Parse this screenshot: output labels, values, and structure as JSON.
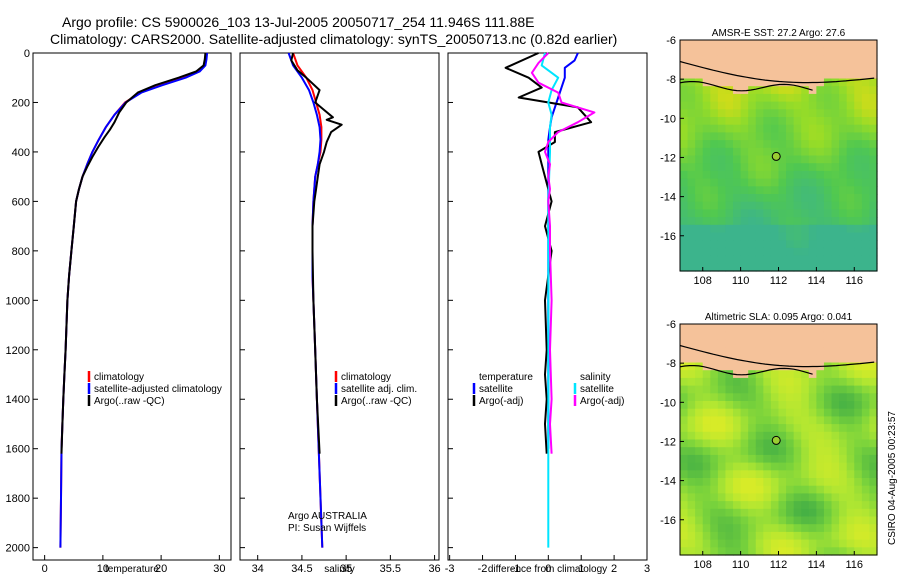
{
  "figure": {
    "title_line1": "Argo profile: CS 5900026_103 13-Jul-2005 20050717_254 11.946S 111.88E",
    "title_line2": "Climatology: CARS2000. Satellite-adjusted climatology: synTS_20050713.nc (0.82d earlier)",
    "credit_vertical": "CSIRO 04-Aug-2005 00:23:57",
    "argo_note_line1": "Argo AUSTRALIA",
    "argo_note_line2": "PI: Susan Wijffels"
  },
  "colors": {
    "climatology": "#ff0000",
    "satellite": "#0000ff",
    "argo": "#000000",
    "salinity_sat": "#00e5ff",
    "salinity_argo": "#ff00ff",
    "land": "#f5c29a"
  },
  "chart_data": [
    {
      "type": "line",
      "id": "temperature",
      "xlabel": "temperature",
      "ylabel": "",
      "xlim": [
        -2,
        32
      ],
      "ylim": [
        2050,
        0
      ],
      "xticks": [
        0,
        10,
        20,
        30
      ],
      "yticks": [
        0,
        200,
        400,
        600,
        800,
        1000,
        1200,
        1400,
        1600,
        1800,
        2000
      ],
      "legend": [
        "climatology",
        "satellite-adjusted climatology",
        "Argo(..raw -QC)"
      ],
      "series": [
        {
          "name": "climatology",
          "color": "#ff0000",
          "x": [
            27.8,
            27.7,
            27.5,
            26.5,
            24,
            20,
            16.5,
            13.8,
            12,
            10.5,
            9.3,
            8.2,
            7.3,
            6.5,
            5.9,
            5.4,
            5,
            4.6,
            4.2,
            3.9,
            3.6,
            3.4,
            3.2,
            3.05,
            2.9,
            2.8,
            2.7
          ],
          "y": [
            0,
            25,
            50,
            75,
            100,
            130,
            160,
            200,
            250,
            300,
            350,
            400,
            450,
            500,
            550,
            600,
            700,
            800,
            900,
            1000,
            1200,
            1300,
            1400,
            1500,
            1600,
            1800,
            2000
          ]
        },
        {
          "name": "satellite",
          "color": "#0000ff",
          "x": [
            27.9,
            27.8,
            27.6,
            26.6,
            24.2,
            20.2,
            16.6,
            13.9,
            12,
            10.5,
            9.3,
            8.2,
            7.3,
            6.5,
            5.9,
            5.4,
            5,
            4.6,
            4.2,
            3.9,
            3.6,
            3.4,
            3.2,
            3.05,
            2.9,
            2.8,
            2.7
          ],
          "y": [
            0,
            25,
            50,
            75,
            100,
            130,
            160,
            200,
            250,
            300,
            350,
            400,
            450,
            500,
            550,
            600,
            700,
            800,
            900,
            1000,
            1200,
            1300,
            1400,
            1500,
            1600,
            1800,
            2000
          ]
        },
        {
          "name": "Argo",
          "color": "#000000",
          "x": [
            27.6,
            27.5,
            27.3,
            26,
            23,
            19,
            16,
            14,
            12.8,
            12,
            11.2,
            10.3,
            9.2,
            8.2,
            7.3,
            6.5,
            5.9,
            5.4,
            5,
            4.6,
            4.2,
            3.9,
            3.6,
            3.4,
            3.2,
            3.05,
            2.9
          ],
          "y": [
            0,
            25,
            50,
            75,
            100,
            130,
            160,
            200,
            240,
            280,
            310,
            340,
            380,
            420,
            460,
            500,
            550,
            600,
            700,
            800,
            900,
            1000,
            1200,
            1300,
            1400,
            1500,
            1620
          ]
        }
      ]
    },
    {
      "type": "line",
      "id": "salinity",
      "xlabel": "salinity",
      "ylabel": "",
      "xlim": [
        33.8,
        36.05
      ],
      "ylim": [
        2050,
        0
      ],
      "xticks": [
        34,
        34.5,
        35,
        35.5,
        36
      ],
      "yticks": [
        0,
        200,
        400,
        600,
        800,
        1000,
        1200,
        1400,
        1600,
        1800,
        2000
      ],
      "legend": [
        "climatology",
        "satellite adj. clim.",
        "Argo(..raw -QC)"
      ],
      "series": [
        {
          "name": "climatology",
          "color": "#ff0000",
          "x": [
            34.4,
            34.45,
            34.55,
            34.62,
            34.66,
            34.7,
            34.72,
            34.72,
            34.71,
            34.68,
            34.65,
            34.63,
            34.62,
            34.62,
            34.62,
            34.63,
            34.65,
            34.67,
            34.69,
            34.71,
            34.72,
            34.73
          ],
          "y": [
            0,
            50,
            100,
            150,
            200,
            250,
            300,
            350,
            400,
            450,
            500,
            600,
            700,
            800,
            900,
            1000,
            1200,
            1400,
            1600,
            1800,
            1900,
            2000
          ]
        },
        {
          "name": "satellite",
          "color": "#0000ff",
          "x": [
            34.35,
            34.4,
            34.5,
            34.58,
            34.63,
            34.67,
            34.7,
            34.71,
            34.7,
            34.68,
            34.65,
            34.63,
            34.62,
            34.62,
            34.62,
            34.63,
            34.65,
            34.67,
            34.69,
            34.71,
            34.72,
            34.73
          ],
          "y": [
            0,
            50,
            100,
            150,
            200,
            250,
            300,
            350,
            400,
            450,
            500,
            600,
            700,
            800,
            900,
            1000,
            1200,
            1400,
            1600,
            1800,
            1900,
            2000
          ]
        },
        {
          "name": "Argo",
          "color": "#000000",
          "x": [
            34.4,
            34.38,
            34.45,
            34.55,
            34.7,
            34.65,
            34.75,
            34.85,
            34.78,
            34.95,
            34.83,
            34.78,
            34.75,
            34.7,
            34.68,
            34.66,
            34.64,
            34.62,
            34.62,
            34.63,
            34.65,
            34.67,
            34.7
          ],
          "y": [
            0,
            30,
            70,
            100,
            150,
            200,
            230,
            260,
            270,
            290,
            320,
            360,
            400,
            450,
            500,
            550,
            600,
            700,
            800,
            1000,
            1200,
            1400,
            1620
          ]
        }
      ]
    },
    {
      "type": "line",
      "id": "difference",
      "xlabel": "difference from climatology",
      "ylabel": "",
      "xlim": [
        -3.05,
        3
      ],
      "ylim": [
        2050,
        0
      ],
      "xticks": [
        -3,
        -2,
        -1,
        0,
        1,
        2,
        3
      ],
      "yticks": [
        0,
        200,
        400,
        600,
        800,
        1000,
        1200,
        1400,
        1600,
        1800,
        2000
      ],
      "legend_left": [
        "temperature",
        "satellite",
        "Argo(-adj)"
      ],
      "legend_right": [
        "salinity",
        "satellite",
        "Argo(-adj)"
      ],
      "series": [
        {
          "name": "temperature satellite",
          "color": "#0000ff",
          "x": [
            0.9,
            0.8,
            0.5,
            0.5,
            0.4,
            0.3,
            0.2,
            0.1,
            0.05,
            0,
            0,
            0,
            0,
            0,
            0
          ],
          "y": [
            0,
            30,
            60,
            100,
            140,
            180,
            220,
            260,
            300,
            350,
            400,
            600,
            800,
            1200,
            1600
          ]
        },
        {
          "name": "temperature Argo",
          "color": "#000000",
          "x": [
            -0.3,
            -1.3,
            -0.6,
            -0.2,
            -0.9,
            0.9,
            1.1,
            1.3,
            0.2,
            0.2,
            -0.3,
            -0.2,
            -0.1,
            0.1,
            -0.1,
            0.1,
            -0.1,
            -0.05,
            -0.1,
            -0.05,
            -0.1,
            -0.05
          ],
          "y": [
            0,
            60,
            100,
            140,
            180,
            220,
            250,
            280,
            320,
            360,
            400,
            450,
            500,
            600,
            700,
            800,
            1000,
            1200,
            1300,
            1400,
            1500,
            1620
          ]
        },
        {
          "name": "salinity satellite",
          "color": "#00e5ff",
          "x": [
            -0.1,
            -0.2,
            0.3,
            0.1,
            0,
            0.1,
            0.05,
            0.05,
            0.05,
            0,
            0,
            0,
            0,
            0,
            0
          ],
          "y": [
            0,
            50,
            100,
            150,
            200,
            250,
            300,
            350,
            400,
            600,
            800,
            1000,
            1400,
            1800,
            2000
          ]
        },
        {
          "name": "salinity Argo",
          "color": "#ff00ff",
          "x": [
            0,
            -0.3,
            -0.5,
            -0.3,
            0.3,
            0.4,
            1.4,
            0.9,
            0.3,
            0,
            -0.1,
            0.05,
            0,
            0.05,
            0,
            0.05,
            0.05,
            0.1,
            0.05,
            0.1,
            0.05,
            0.1
          ],
          "y": [
            0,
            40,
            80,
            120,
            160,
            200,
            240,
            280,
            320,
            360,
            400,
            450,
            500,
            550,
            600,
            700,
            800,
            1000,
            1200,
            1400,
            1500,
            1620
          ]
        }
      ]
    },
    {
      "type": "heatmap",
      "id": "sst_map",
      "title": "AMSR-E SST: 27.2 Argo: 27.6",
      "xlim": [
        106.8,
        117.2
      ],
      "ylim": [
        -17.8,
        -6
      ],
      "xticks": [
        108,
        110,
        112,
        114,
        116
      ],
      "yticks": [
        -6,
        -8,
        -10,
        -12,
        -14,
        -16
      ],
      "marker": {
        "lon": 111.88,
        "lat": -11.946
      }
    },
    {
      "type": "heatmap",
      "id": "sla_map",
      "title": "Altimetric SLA: 0.095 Argo: 0.041",
      "xlim": [
        106.8,
        117.2
      ],
      "ylim": [
        -17.8,
        -6
      ],
      "xticks": [
        108,
        110,
        112,
        114,
        116
      ],
      "yticks": [
        -6,
        -8,
        -10,
        -12,
        -14,
        -16
      ],
      "marker": {
        "lon": 111.88,
        "lat": -11.946
      }
    }
  ]
}
